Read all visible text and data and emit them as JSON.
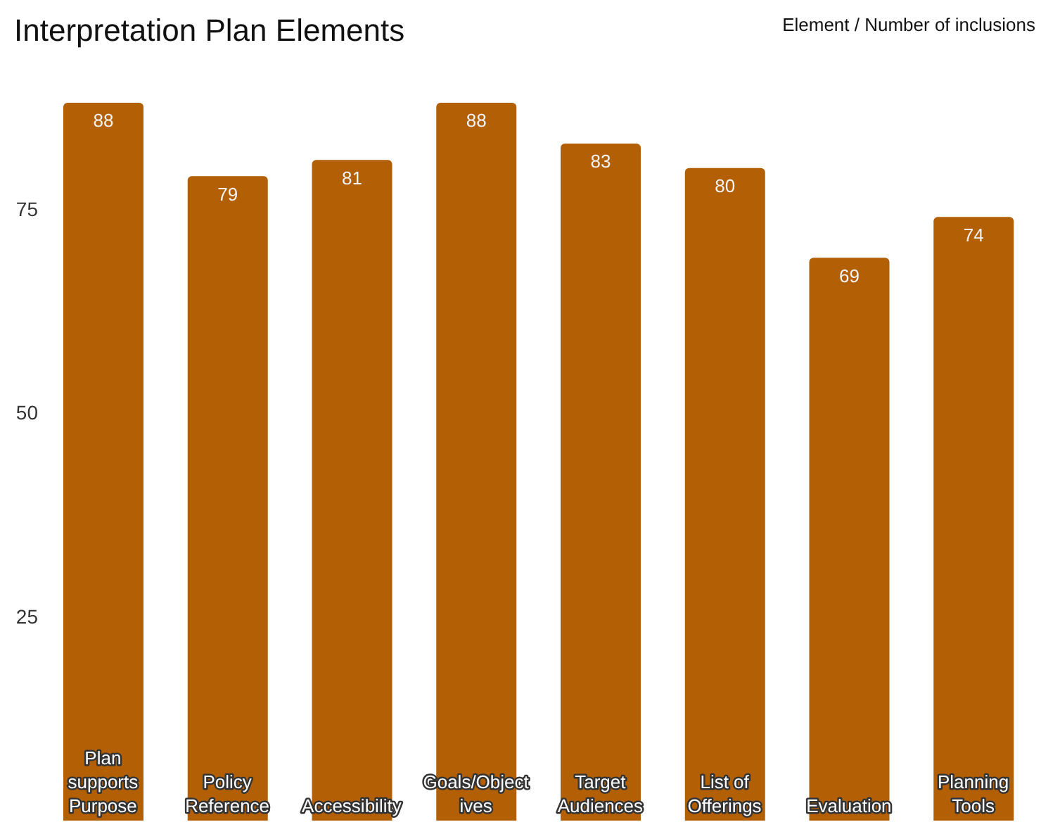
{
  "chart_data": {
    "type": "bar",
    "title": "Interpretation Plan Elements",
    "annotations": [
      "Element / Number of inclusions"
    ],
    "categories": [
      "Plan supports Purpose",
      "Policy Reference",
      "Accessibility",
      "Goals/Objectives",
      "Target Audiences",
      "List of Offerings",
      "Evaluation",
      "Planning Tools"
    ],
    "values": [
      88,
      79,
      81,
      88,
      83,
      80,
      69,
      74
    ],
    "color": "#b35f06",
    "ylim": [
      0,
      88
    ],
    "yticks": [
      25,
      50,
      75
    ],
    "data_labels": true,
    "grid": false
  }
}
